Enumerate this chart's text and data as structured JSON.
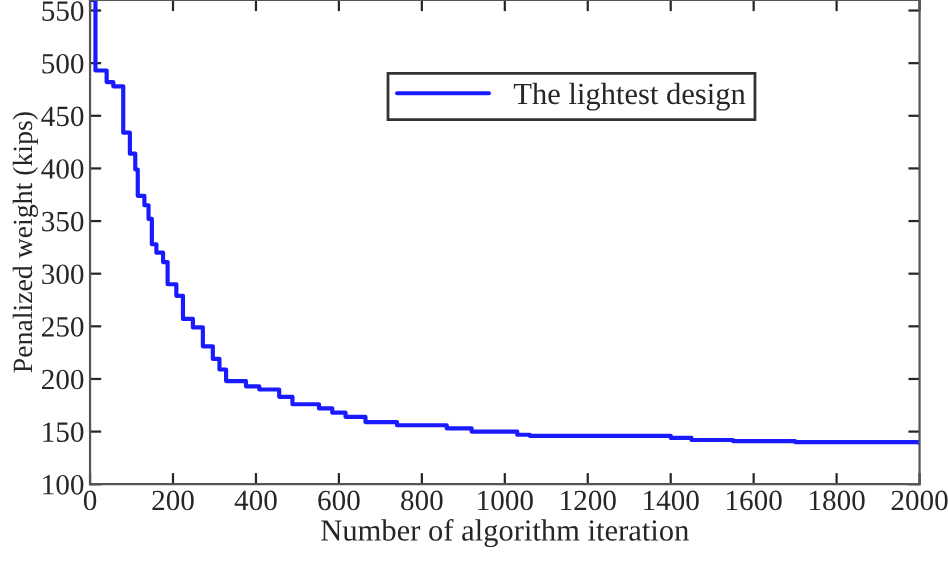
{
  "chart_data": {
    "type": "step",
    "xlabel": "Number of algorithm iteration",
    "ylabel": "Penalized weight (kips)",
    "series": [
      {
        "name": "The lightest design",
        "color": "#1a1aff",
        "x": [
          0,
          13,
          40,
          56,
          80,
          96,
          109,
          115,
          131,
          141,
          149,
          160,
          176,
          187,
          208,
          224,
          248,
          272,
          296,
          312,
          328,
          376,
          408,
          456,
          488,
          552,
          584,
          616,
          664,
          740,
          860,
          920,
          1030,
          1060,
          1400,
          1450,
          1550,
          1700,
          2000
        ],
        "values": [
          560,
          493,
          482,
          478,
          434,
          414,
          399,
          374,
          365,
          352,
          328,
          320,
          311,
          290,
          279,
          257,
          249,
          231,
          219,
          209,
          198,
          193,
          190,
          183,
          176,
          172,
          168,
          164,
          159,
          156,
          153,
          150,
          147,
          146,
          144,
          142,
          141,
          140,
          139
        ]
      }
    ],
    "xlim": [
      0,
      2000
    ],
    "ylim": [
      100,
      560
    ],
    "xticks": [
      0,
      200,
      400,
      600,
      800,
      1000,
      1200,
      1400,
      1600,
      1800,
      2000
    ],
    "yticks": [
      100,
      150,
      200,
      250,
      300,
      350,
      400,
      450,
      500,
      550
    ],
    "legend": "top right",
    "grid": false
  }
}
